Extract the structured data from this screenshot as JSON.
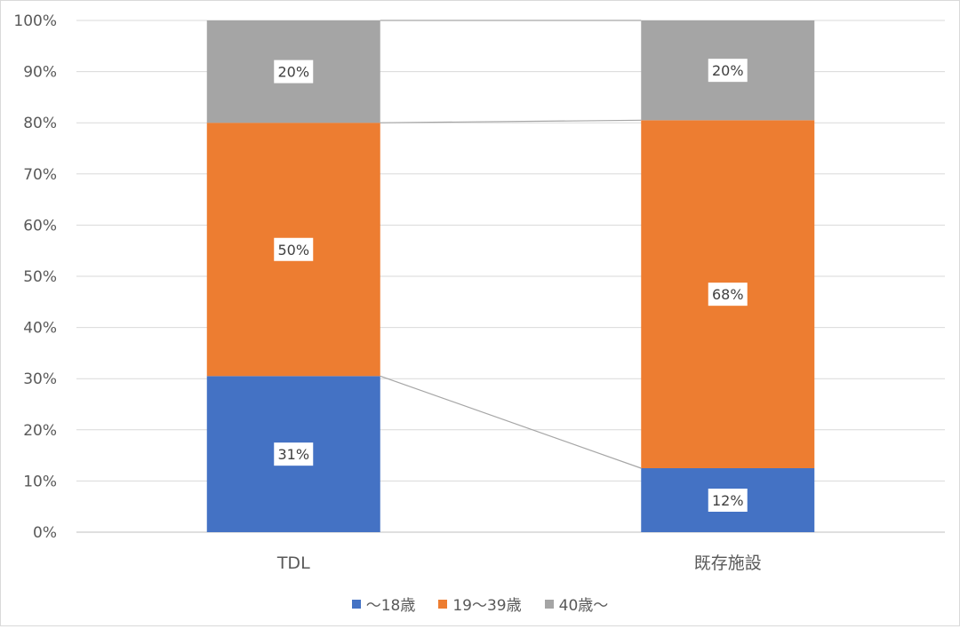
{
  "chart_data": {
    "type": "bar",
    "stacked": true,
    "stack_mode": "percent",
    "categories": [
      "TDL",
      "既存施設"
    ],
    "series": [
      {
        "name": "〜18歳",
        "color": "#4472C4",
        "values": [
          30.5,
          12.5
        ],
        "labels": [
          "31%",
          "12%"
        ]
      },
      {
        "name": "19〜39歳",
        "color": "#ED7D31",
        "values": [
          49.5,
          68
        ],
        "labels": [
          "50%",
          "68%"
        ]
      },
      {
        "name": "40歳〜",
        "color": "#A5A5A5",
        "values": [
          20,
          19.5
        ],
        "labels": [
          "20%",
          "20%"
        ]
      }
    ],
    "ylim": [
      0,
      100
    ],
    "yticks": [
      "0%",
      "10%",
      "20%",
      "30%",
      "40%",
      "50%",
      "60%",
      "70%",
      "80%",
      "90%",
      "100%"
    ],
    "grid": true,
    "series_lines": true,
    "legend_position": "bottom",
    "title": "",
    "xlabel": "",
    "ylabel": ""
  }
}
